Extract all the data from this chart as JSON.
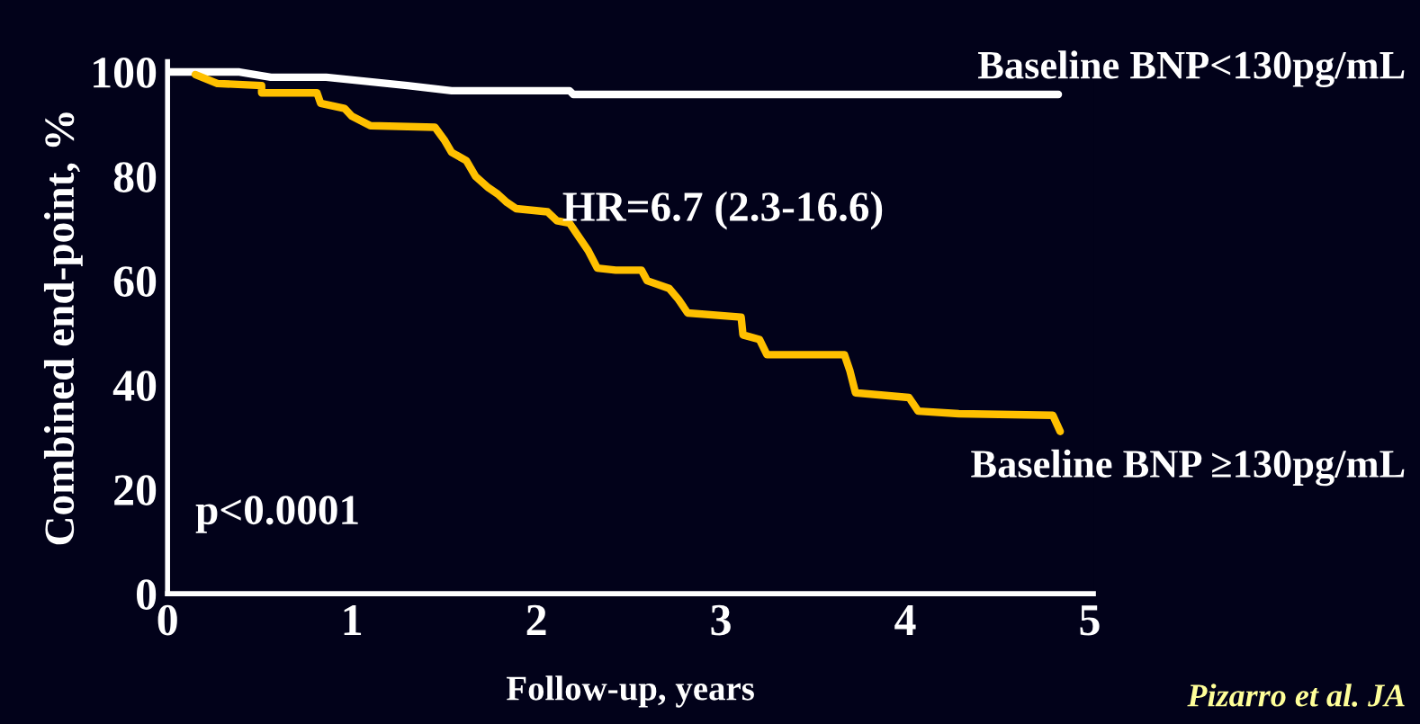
{
  "chart_data": {
    "type": "line",
    "xlabel": "Follow-up, years",
    "ylabel": "Combined end-point, %",
    "xlim": [
      0,
      5.02
    ],
    "ylim": [
      0,
      102
    ],
    "xticks": [
      0,
      1,
      2,
      3,
      4,
      5
    ],
    "yticks": [
      0,
      20,
      40,
      60,
      80,
      100
    ],
    "grid": false,
    "legend": false,
    "marker": "none",
    "line_style": "solid",
    "series": [
      {
        "name": "Baseline BNP<130pg/mL",
        "color": "#ffffff",
        "x": [
          0,
          0.39,
          0.56,
          0.86,
          1.05,
          1.3,
          1.54,
          2.18,
          2.2,
          4.83
        ],
        "values": [
          100,
          100,
          99,
          99,
          98.3,
          97.4,
          96.4,
          96.4,
          95.7,
          95.7
        ]
      },
      {
        "name": "Baseline BNP ≥130pg/mL",
        "color": "#ffc000",
        "x": [
          0.15,
          0.27,
          0.51,
          0.51,
          0.81,
          0.83,
          0.96,
          1.0,
          1.1,
          1.45,
          1.5,
          1.54,
          1.62,
          1.67,
          1.74,
          1.79,
          1.84,
          1.89,
          2.06,
          2.11,
          2.18,
          2.23,
          2.28,
          2.33,
          2.43,
          2.57,
          2.6,
          2.72,
          2.77,
          2.82,
          3.11,
          3.12,
          3.21,
          3.25,
          3.67,
          3.7,
          3.73,
          4.02,
          4.07,
          4.29,
          4.8,
          4.84
        ],
        "values": [
          99.5,
          97.8,
          97.4,
          96,
          96,
          94,
          93,
          91.5,
          89.7,
          89.4,
          87,
          84.6,
          83,
          80,
          77.8,
          76.6,
          75,
          73.8,
          73.2,
          71.5,
          71,
          68.4,
          65.8,
          62.4,
          62,
          62,
          60,
          58.5,
          56.4,
          53.8,
          53,
          49.6,
          48.7,
          45.8,
          45.8,
          42.7,
          38.5,
          37.6,
          35,
          34.5,
          34.2,
          31.1
        ]
      }
    ],
    "annotations": [
      "HR=6.7 (2.3-16.6)",
      "p<0.0001",
      "Pizarro et al. JA"
    ]
  }
}
